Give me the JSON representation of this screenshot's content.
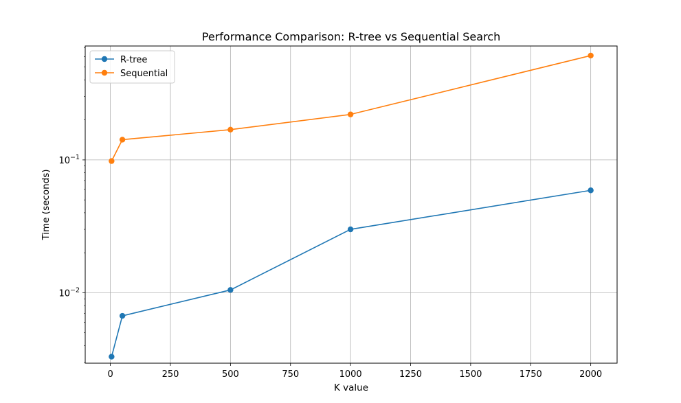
{
  "chart_data": {
    "type": "line",
    "title": "Performance Comparison: R-tree vs Sequential Search",
    "xlabel": "K value",
    "ylabel": "Time (seconds)",
    "x": [
      5,
      50,
      500,
      1000,
      2000
    ],
    "xlim": [
      -104.75,
      2109.75
    ],
    "ylim": [
      0.00295,
      0.72
    ],
    "yscale": "log",
    "grid": true,
    "legend_position": "upper-left",
    "xticks": [
      0,
      250,
      500,
      750,
      1000,
      1250,
      1500,
      1750,
      2000
    ],
    "xtick_labels": [
      "0",
      "250",
      "500",
      "750",
      "1000",
      "1250",
      "1500",
      "1750",
      "2000"
    ],
    "yticks": [
      {
        "value": 0.01,
        "base": "10",
        "exp": "−2"
      },
      {
        "value": 0.1,
        "base": "10",
        "exp": "−1"
      }
    ],
    "series": [
      {
        "name": "R-tree",
        "color": "#1f77b4",
        "values": [
          0.0033,
          0.0067,
          0.0105,
          0.03,
          0.059
        ]
      },
      {
        "name": "Sequential",
        "color": "#ff7f0e",
        "values": [
          0.098,
          0.142,
          0.169,
          0.22,
          0.61
        ]
      }
    ]
  }
}
